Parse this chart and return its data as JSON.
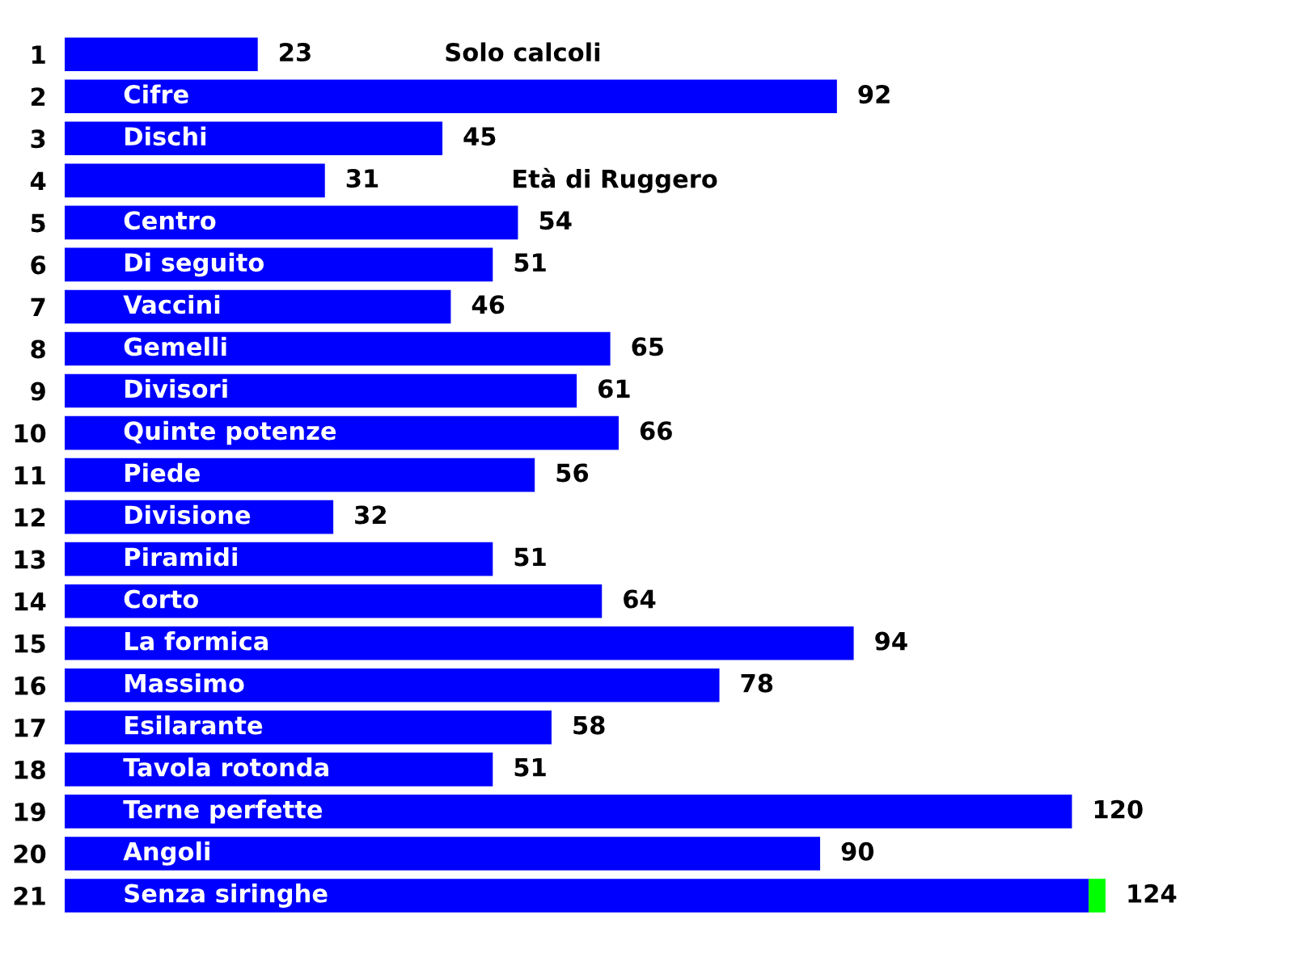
{
  "chart_data": {
    "type": "bar",
    "orientation": "horizontal",
    "stacked": true,
    "tick_labels": "y",
    "grid": false,
    "categories": [
      "1",
      "2",
      "3",
      "4",
      "5",
      "6",
      "7",
      "8",
      "9",
      "10",
      "11",
      "12",
      "13",
      "14",
      "15",
      "16",
      "17",
      "18",
      "19",
      "20",
      "21"
    ],
    "series": [
      {
        "color": "#0000ff",
        "values": [
          23,
          92,
          45,
          31,
          54,
          51,
          46,
          65,
          61,
          66,
          56,
          32,
          51,
          64,
          94,
          78,
          58,
          51,
          120,
          90,
          122
        ],
        "value_labels": [
          "23",
          "92",
          "45",
          "31",
          "54",
          "51",
          "46",
          "65",
          "61",
          "66",
          "56",
          "32",
          "51",
          "64",
          "94",
          "78",
          "58",
          "51",
          "120",
          "90",
          null
        ]
      },
      {
        "color": "#00ff00",
        "values": [
          null,
          null,
          null,
          null,
          null,
          null,
          null,
          null,
          null,
          null,
          null,
          null,
          null,
          null,
          null,
          null,
          null,
          null,
          null,
          null,
          2
        ]
      }
    ],
    "totals": [
      null,
      null,
      null,
      null,
      null,
      null,
      null,
      null,
      null,
      null,
      null,
      null,
      null,
      null,
      null,
      null,
      null,
      null,
      null,
      null,
      "124"
    ],
    "annotations": [
      "Solo calcoli",
      "Cifre",
      "Dischi",
      "Età di Ruggero",
      "Centro",
      "Di seguito",
      "Vaccini",
      "Gemelli",
      "Divisori",
      "Quinte potenze",
      "Piede",
      "Divisione",
      "Piramidi",
      "Corto",
      "La formica",
      "Massimo",
      "Esilarante",
      "Tavola rotonda",
      "Terne perfette",
      "Angoli",
      "Senza siringhe"
    ]
  }
}
